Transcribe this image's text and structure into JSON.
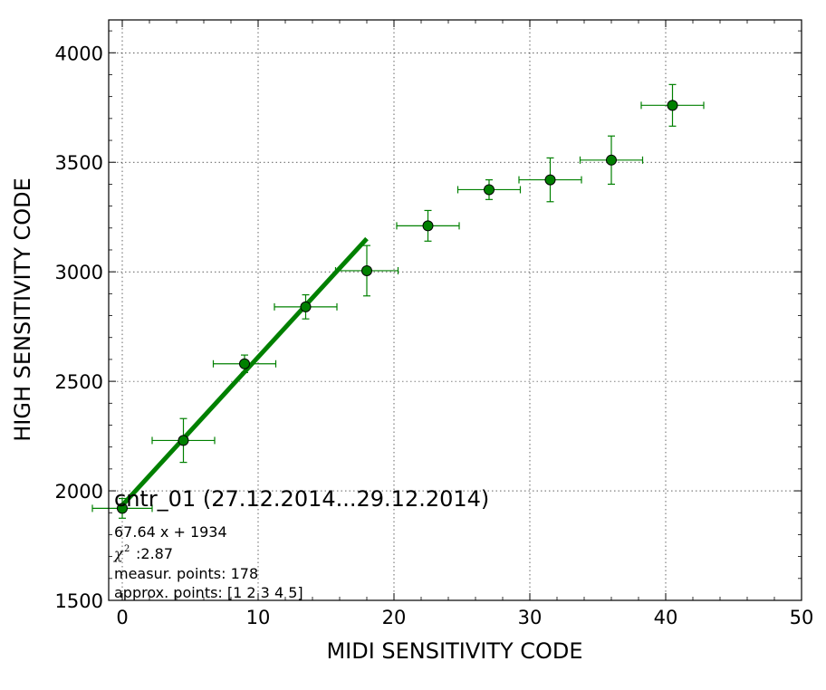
{
  "chart_data": {
    "type": "scatter",
    "title": "cntr_01 (27.12.2014...29.12.2014)",
    "xlabel": "MIDI SENSITIVITY CODE",
    "ylabel": "HIGH SENSITIVITY CODE",
    "xlim": [
      -1,
      50
    ],
    "ylim": [
      1500,
      4150
    ],
    "xticks": [
      0,
      10,
      20,
      30,
      40,
      50
    ],
    "yticks": [
      1500,
      2000,
      2500,
      3000,
      3500,
      4000
    ],
    "grid": true,
    "colors": {
      "series": "#008000",
      "marker_fill": "#008000"
    },
    "series": [
      {
        "x": [
          0.0,
          4.5,
          9.0,
          13.5,
          18.0,
          22.5,
          27.0,
          31.5,
          36.0,
          40.5
        ],
        "y": [
          1920,
          2230,
          2580,
          2840,
          3005,
          3210,
          3375,
          3420,
          3510,
          3760
        ],
        "xerr": [
          2.2,
          2.3,
          2.3,
          2.3,
          2.3,
          2.3,
          2.3,
          2.3,
          2.3,
          2.3
        ],
        "yerr": [
          45,
          100,
          40,
          55,
          115,
          70,
          45,
          100,
          110,
          95
        ]
      }
    ],
    "fit": {
      "slope": 67.64,
      "intercept": 1934,
      "x_range": [
        0,
        18
      ]
    },
    "annotations": [
      "67.64 x + 1934",
      ":2.87",
      "measur. points: 178",
      "approx. points: [1 2 3 4 5]"
    ],
    "chi_symbol": "χ",
    "chi_sup": "2"
  }
}
